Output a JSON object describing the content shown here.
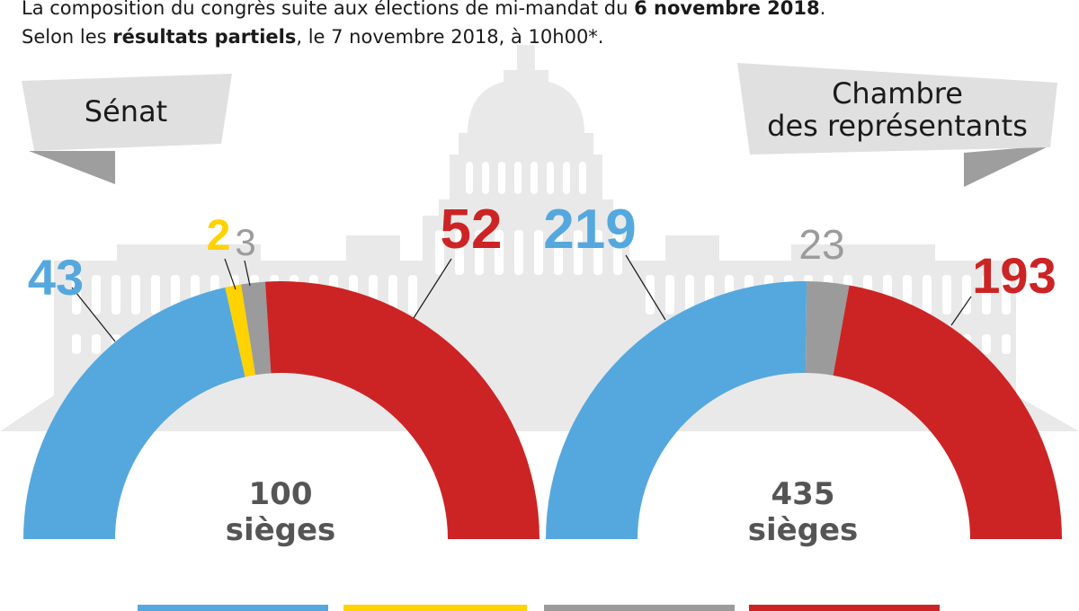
{
  "header": {
    "line1_a": "La composition du congrès suite aux élections de mi-mandat du ",
    "line1_b": "6 novembre 2018",
    "line1_c": ".",
    "line2_a": "Selon les ",
    "line2_b": "résultats partiels",
    "line2_c": ", le 7 novembre 2018, à 10h00*."
  },
  "colors": {
    "democrat": "#55a8de",
    "independent": "#ffd200",
    "undecided": "#9b9b9b",
    "republican": "#cc2424",
    "center_text": "#555555",
    "background_building": "#e9e9e9",
    "ribbon": "#e0e0e0",
    "ribbon_dark": "#9e9e9e"
  },
  "chart_data": [
    {
      "type": "pie",
      "variant": "half-donut",
      "title": "Sénat",
      "total_label_number": "100",
      "total_label_unit": "sièges",
      "categories": [
        "blue",
        "yellow",
        "gray",
        "red"
      ],
      "values": [
        43,
        2,
        3,
        52
      ],
      "value_labels": [
        "43",
        "2",
        "3",
        "52"
      ]
    },
    {
      "type": "pie",
      "variant": "half-donut",
      "title_line1": "Chambre",
      "title_line2": "des représentants",
      "total_label_number": "435",
      "total_label_unit": "sièges",
      "categories": [
        "blue",
        "gray",
        "red"
      ],
      "values": [
        219,
        23,
        193
      ],
      "value_labels": [
        "219",
        "23",
        "193"
      ]
    }
  ]
}
